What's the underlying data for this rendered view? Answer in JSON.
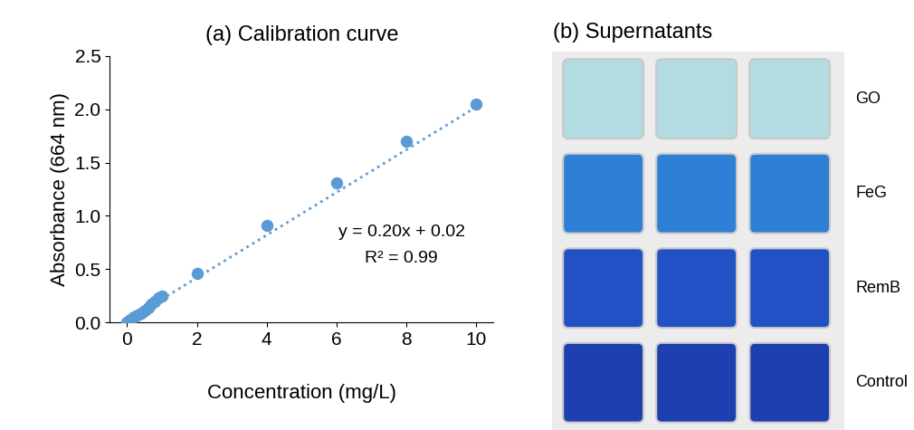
{
  "chart_data": {
    "type": "scatter",
    "title": "(a) Calibration curve",
    "x_label": "Concentration (mg/L)",
    "y_label": "Absorbance (664 nm)",
    "x": [
      0,
      0.05,
      0.1,
      0.2,
      0.3,
      0.4,
      0.5,
      0.6,
      0.7,
      0.8,
      0.9,
      1,
      2,
      4,
      6,
      8,
      10
    ],
    "values": [
      0.0,
      0.01,
      0.03,
      0.05,
      0.07,
      0.09,
      0.11,
      0.14,
      0.17,
      0.2,
      0.23,
      0.25,
      0.46,
      0.91,
      1.31,
      1.7,
      2.05
    ],
    "color": "#5b9bd5",
    "marker": "o",
    "trendline": {
      "slope": 0.2,
      "intercept": 0.02,
      "line_style": "dotted",
      "color": "#5b9bd5"
    },
    "annotations": [
      "y = 0.20x + 0.02",
      "R² = 0.99"
    ],
    "xlim": [
      -0.5,
      10.5
    ],
    "xticks": [
      0,
      2,
      4,
      6,
      8,
      10
    ],
    "ylim": [
      0,
      2.5
    ],
    "yticks": [
      {
        "value": 0,
        "label": "0.0"
      },
      0.5,
      {
        "value": 1,
        "label": "1.0"
      },
      1.5,
      {
        "value": 2,
        "label": "2.0"
      },
      2.5
    ],
    "grid": false
  },
  "photo": {
    "title": "(b) Supernatants",
    "rows": [
      {
        "label": "GO",
        "color": "#b3dbe2"
      },
      {
        "label": "FeG",
        "color": "#2e7fd6"
      },
      {
        "label": "RemB",
        "color": "#2151c4"
      },
      {
        "label": "Control",
        "color": "#1d3fb0"
      }
    ]
  }
}
